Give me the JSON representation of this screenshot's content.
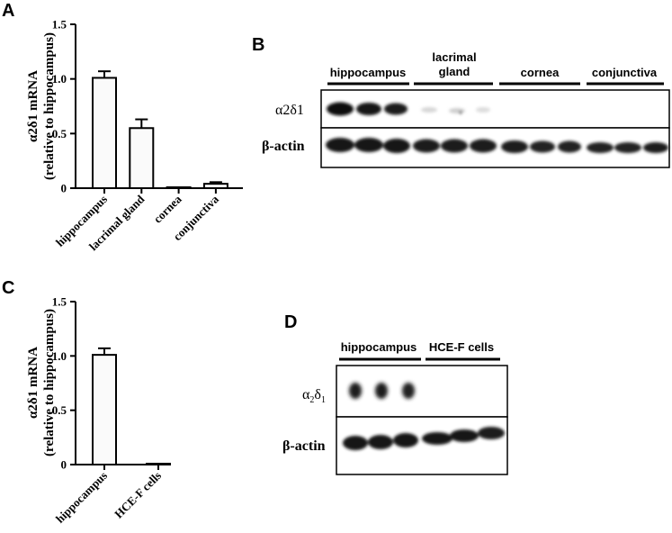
{
  "panels": {
    "A": {
      "letter": "A"
    },
    "B": {
      "letter": "B"
    },
    "C": {
      "letter": "C"
    },
    "D": {
      "letter": "D"
    }
  },
  "chart_data": [
    {
      "panel": "A",
      "type": "bar",
      "ylabel_line1": "α2δ1 mRNA",
      "ylabel_line2": "(relative to hippocampus)",
      "ylim": [
        0,
        1.5
      ],
      "yticks": [
        "0",
        "0.5",
        "1.0",
        "1.5"
      ],
      "ytick_values": [
        0,
        0.5,
        1.0,
        1.5
      ],
      "categories": [
        "hippocampus",
        "lacrimal gland",
        "cornea",
        "conjunctiva"
      ],
      "values": [
        1.01,
        0.55,
        0.005,
        0.04
      ],
      "errors": [
        0.06,
        0.08,
        0.003,
        0.015
      ],
      "grid": false
    },
    {
      "panel": "C",
      "type": "bar",
      "ylabel_line1": "α2δ1 mRNA",
      "ylabel_line2": "(relative to hippocampus)",
      "ylim": [
        0,
        1.5
      ],
      "yticks": [
        "0",
        "0.5",
        "1.0",
        "1.5"
      ],
      "ytick_values": [
        0,
        0.5,
        1.0,
        1.5
      ],
      "categories": [
        "hippocampus",
        "HCE-F cells"
      ],
      "values": [
        1.01,
        0.005
      ],
      "errors": [
        0.06,
        0.002
      ],
      "grid": false
    }
  ],
  "blots": {
    "B": {
      "groups": [
        "hippocampus",
        "lacrimal\ngland",
        "cornea",
        "conjunctiva"
      ],
      "group_line1": [
        "hippocampus",
        "lacrimal",
        "cornea",
        "conjunctiva"
      ],
      "group_line2": [
        "",
        "gland",
        "",
        ""
      ],
      "rows": [
        "α2δ1",
        "β-actin"
      ]
    },
    "D": {
      "groups": [
        "hippocampus",
        "HCE-F cells"
      ],
      "rows": [
        "α2δ1",
        "β-actin"
      ]
    }
  }
}
